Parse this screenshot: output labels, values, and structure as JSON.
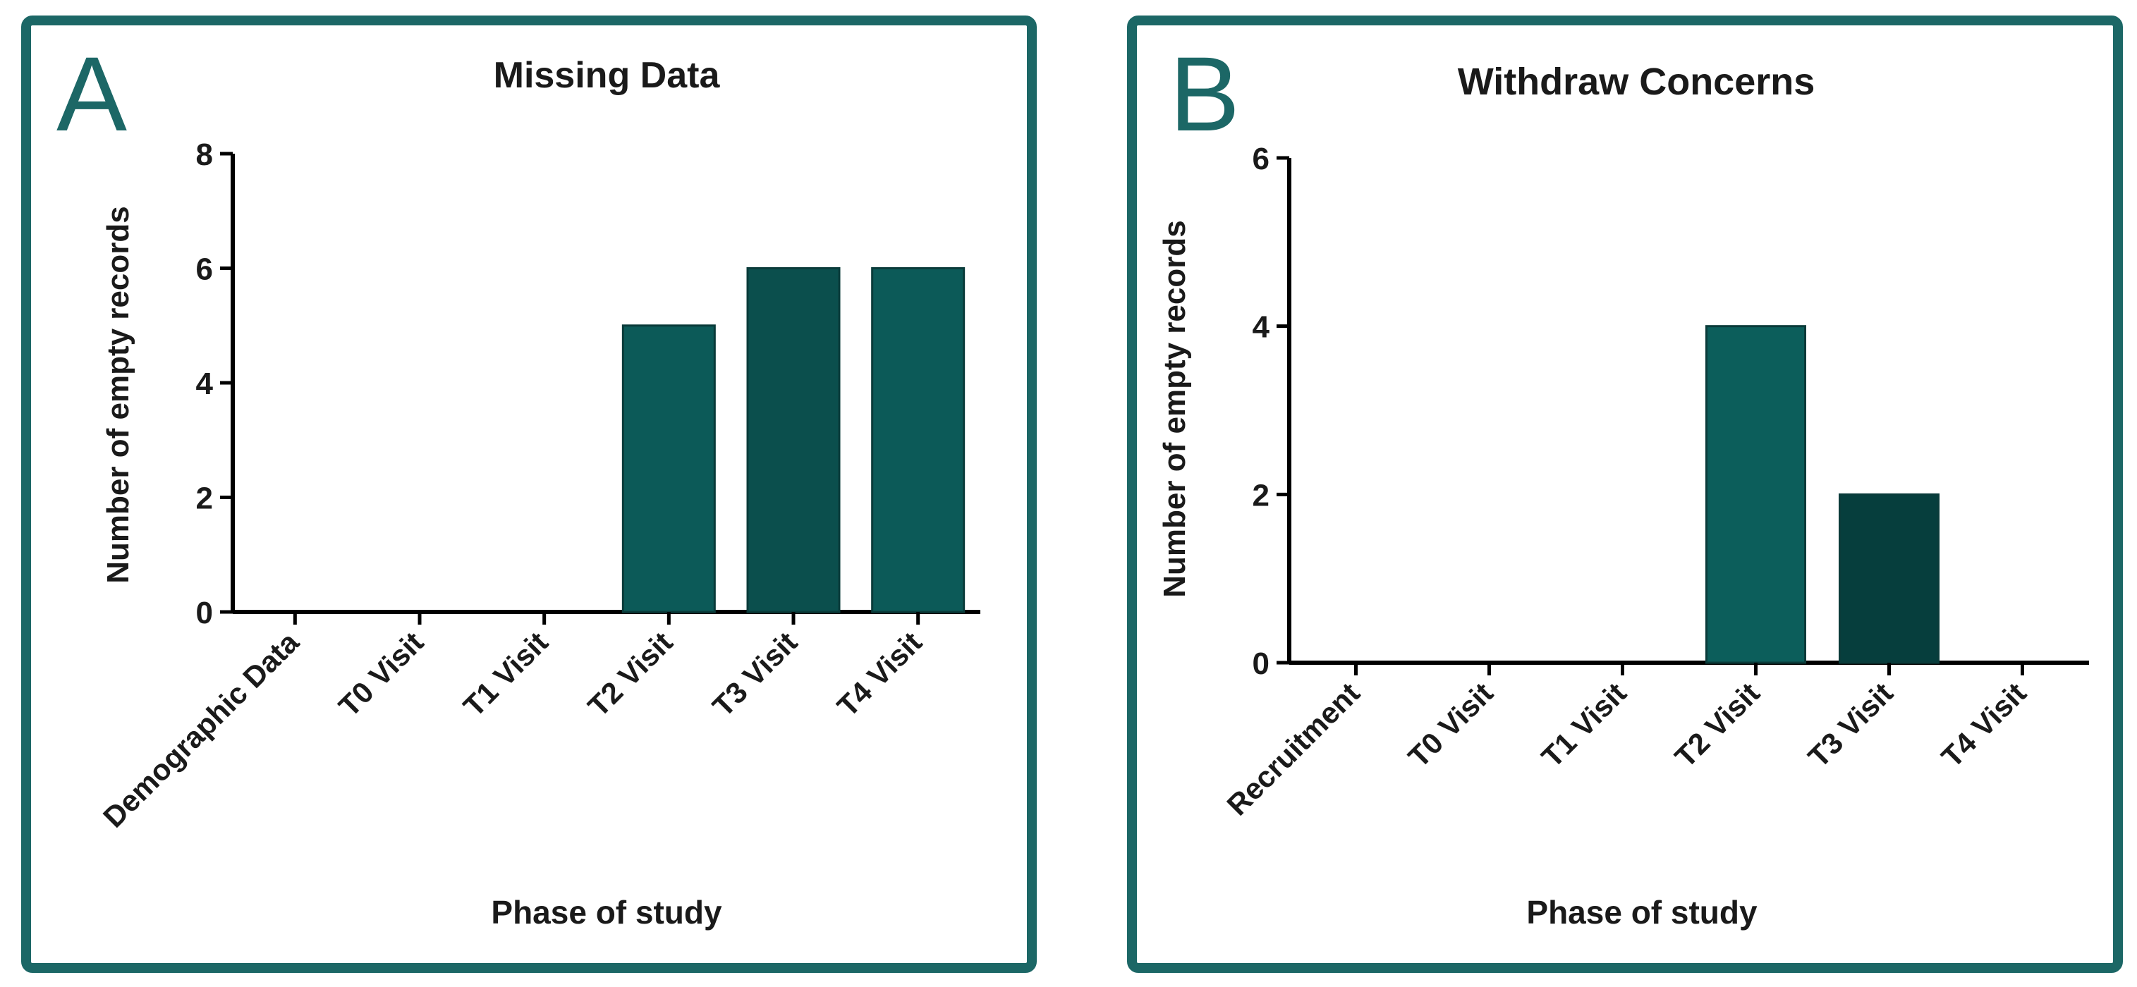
{
  "chart_data": [
    {
      "type": "bar",
      "panel_label": "A",
      "title": "Missing Data",
      "xlabel": "Phase of study",
      "ylabel": "Number of empty records",
      "categories": [
        "Demographic Data",
        "T0 Visit",
        "T1 Visit",
        "T2 Visit",
        "T3 Visit",
        "T4 Visit"
      ],
      "values": [
        0,
        0,
        0,
        5,
        6,
        6
      ],
      "ylim": [
        0,
        8
      ],
      "yticks": [
        "0",
        "2",
        "4",
        "6",
        "8"
      ],
      "grid": false,
      "colors": [
        "#0c5a58",
        "#0c5a58",
        "#0c5a58",
        "#0c5a58",
        "#0b4f4d",
        "#0c5a58"
      ]
    },
    {
      "type": "bar",
      "panel_label": "B",
      "title": "Withdraw Concerns",
      "xlabel": "Phase of study",
      "ylabel": "Number of empty records",
      "categories": [
        "Recruitment",
        "T0 Visit",
        "T1 Visit",
        "T2 Visit",
        "T3 Visit",
        "T4 Visit"
      ],
      "values": [
        0,
        0,
        0,
        4,
        2,
        0
      ],
      "ylim": [
        0,
        6
      ],
      "yticks": [
        "0",
        "2",
        "4",
        "6"
      ],
      "grid": false,
      "colors": [
        "#0c5e5b",
        "#0c5e5b",
        "#0c5e5b",
        "#0c5e5b",
        "#063e3d",
        "#0c5e5b"
      ]
    }
  ]
}
